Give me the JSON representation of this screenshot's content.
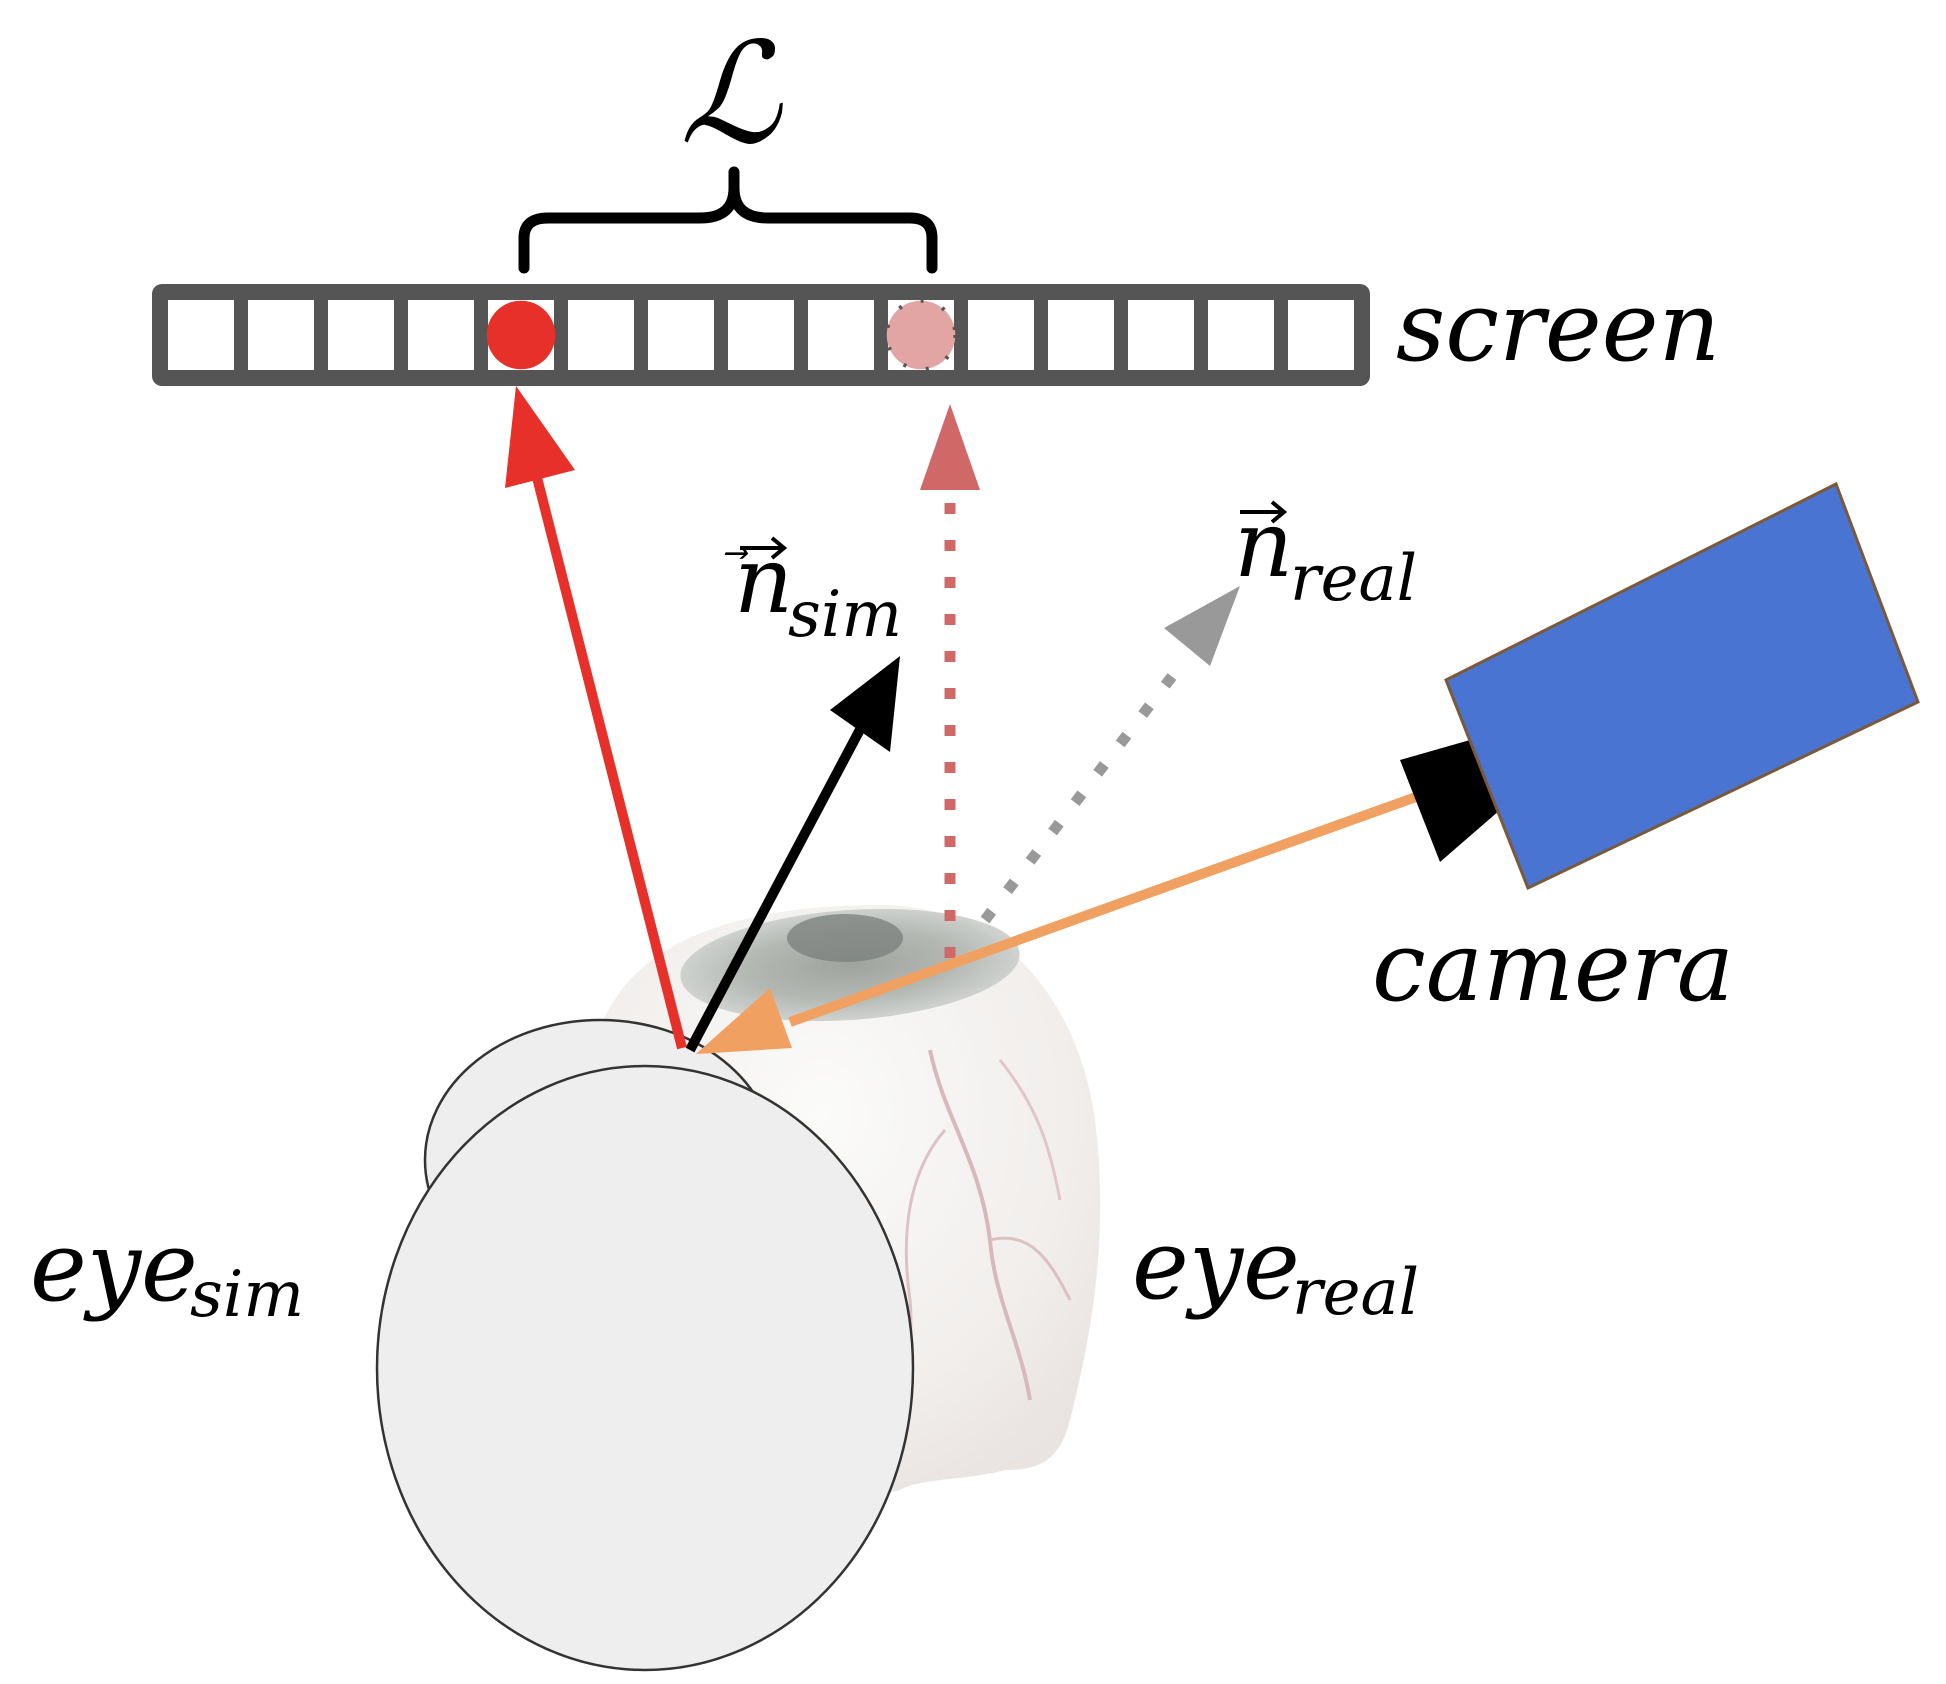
{
  "labels": {
    "loss": "ℒ",
    "screen": "screen",
    "camera": "camera",
    "n_sim_base": "n",
    "n_sim_sub": "sim",
    "n_real_base": "n",
    "n_real_sub": "real",
    "eye_sim_base": "eye",
    "eye_sim_sub": "sim",
    "eye_real_base": "eye",
    "eye_real_sub": "real"
  },
  "screen": {
    "cell_count": 15,
    "highlighted_cell_sim": 5,
    "highlighted_cell_real": 10
  },
  "colors": {
    "screen_frame": "#555555",
    "sim_ray": "#e8302a",
    "real_ray": "#d06868",
    "normal_sim": "#000000",
    "normal_real": "#999999",
    "camera_ray": "#f0a060",
    "camera_body": "#4a74d2",
    "camera_lens": "#000000",
    "sim_eye_fill": "#eeeeee",
    "real_eye_fill": "#f3f1ef"
  },
  "icons": {
    "camera": "camera-icon",
    "eye_real": "eyeball-icon",
    "eye_sim": "eye-model-icon"
  }
}
